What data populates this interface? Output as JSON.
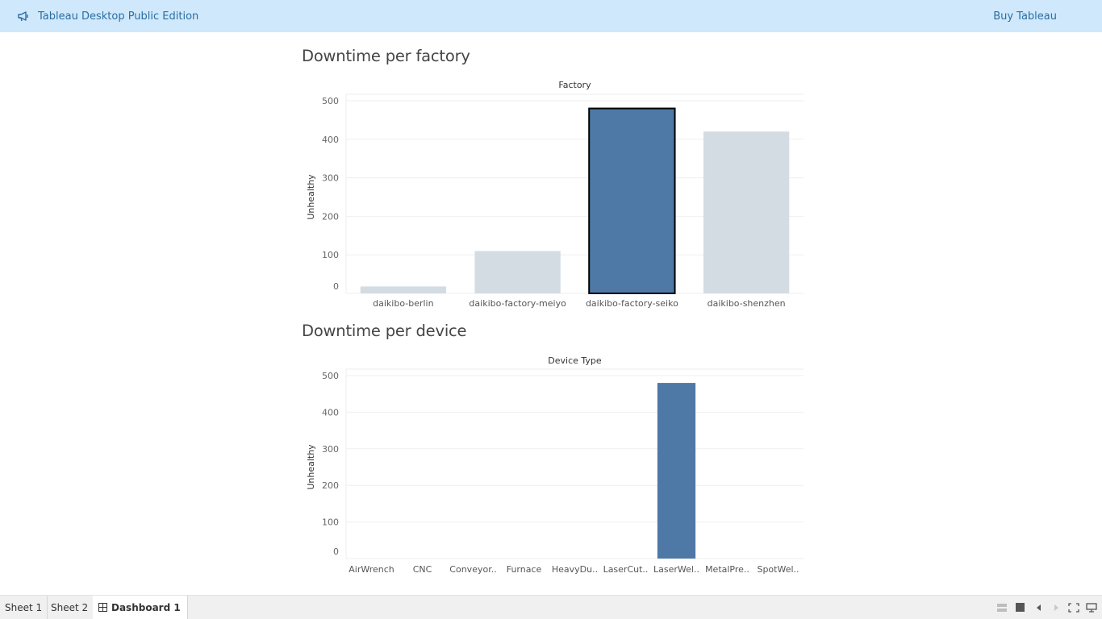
{
  "topbar": {
    "promo_label": "Tableau Desktop Public Edition",
    "buy_label": "Buy Tableau",
    "bg_color": "#cfe8fb",
    "link_color": "#2a6ea3"
  },
  "dashboard": {
    "factory_title": "Downtime per factory",
    "device_title": "Downtime per device"
  },
  "chart_data": [
    {
      "type": "bar",
      "header": "Factory",
      "ylabel": "Unhealthy",
      "categories": [
        "daikibo-berlin",
        "daikibo-factory-meiyo",
        "daikibo-factory-seiko",
        "daikibo-shenzhen"
      ],
      "values": [
        18,
        110,
        480,
        420
      ],
      "ylim": [
        0,
        500
      ],
      "yticks": [
        0,
        100,
        200,
        300,
        400,
        500
      ],
      "selected_index": 2,
      "colors": {
        "selected": "#4e79a7",
        "unselected": "#d4dce3"
      },
      "grid": true
    },
    {
      "type": "bar",
      "header": "Device Type",
      "ylabel": "Unhealthy",
      "categories": [
        "AirWrench",
        "CNC",
        "Conveyor..",
        "Furnace",
        "HeavyDu..",
        "LaserCut..",
        "LaserWel..",
        "MetalPre..",
        "SpotWel.."
      ],
      "values": [
        0,
        0,
        0,
        0,
        0,
        0,
        480,
        0,
        0
      ],
      "ylim": [
        0,
        500
      ],
      "yticks": [
        0,
        100,
        200,
        300,
        400,
        500
      ],
      "colors": {
        "bar": "#4e79a7"
      },
      "grid": true
    }
  ],
  "bottombar": {
    "tabs": [
      "Sheet 1",
      "Sheet 2",
      "Dashboard 1"
    ],
    "active_tab": "Dashboard 1",
    "icons": [
      "layout-icon",
      "fixed-size-icon",
      "previous-icon",
      "next-icon",
      "fullscreen-icon",
      "presentation-icon"
    ]
  }
}
